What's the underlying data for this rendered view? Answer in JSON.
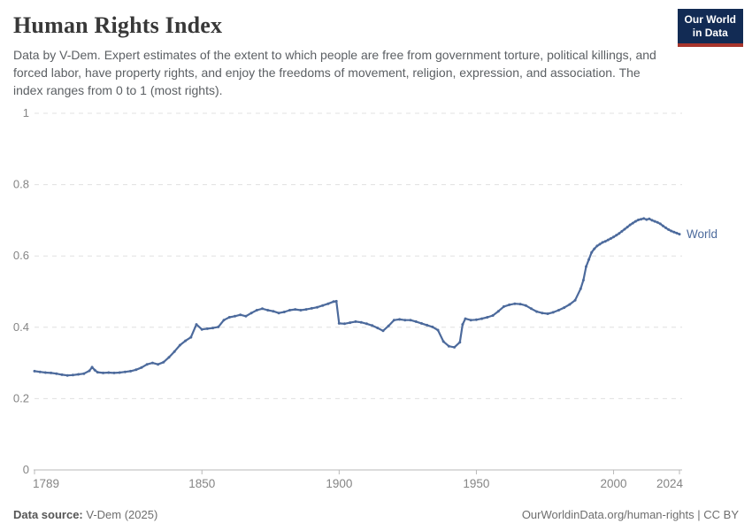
{
  "header": {
    "title": "Human Rights Index",
    "subtitle": "Data by V-Dem. Expert estimates of the extent to which people are free from government torture, political killings, and forced labor, have property rights, and enjoy the freedoms of movement, religion, expression, and association. The index ranges from 0 to 1 (most rights).",
    "logo_line1": "Our World",
    "logo_line2": "in Data"
  },
  "footer": {
    "source_label": "Data source:",
    "source_value": " V-Dem (2025)",
    "url": "OurWorldinData.org/human-rights",
    "separator": " | ",
    "license": "CC BY"
  },
  "colors": {
    "line": "#4c6a9c",
    "grid": "#e0e0e0",
    "axis": "#b8b8b8",
    "tick_label": "#858585",
    "logo_bg": "#122b54",
    "logo_stripe": "#a8352c"
  },
  "chart_data": {
    "type": "line",
    "title": "Human Rights Index",
    "xlabel": "",
    "ylabel": "",
    "xlim": [
      1789,
      2024
    ],
    "ylim": [
      0,
      1
    ],
    "xticks": [
      1789,
      1850,
      1900,
      1950,
      2000,
      2024
    ],
    "yticks": [
      0,
      0.2,
      0.4,
      0.6,
      0.8,
      1
    ],
    "grid": "horizontal-dashed",
    "legend_position": "end-of-line",
    "series": [
      {
        "name": "World",
        "color": "#4c6a9c",
        "points": [
          [
            1789,
            0.277
          ],
          [
            1791,
            0.275
          ],
          [
            1793,
            0.273
          ],
          [
            1795,
            0.272
          ],
          [
            1797,
            0.27
          ],
          [
            1799,
            0.267
          ],
          [
            1801,
            0.265
          ],
          [
            1803,
            0.266
          ],
          [
            1805,
            0.268
          ],
          [
            1807,
            0.27
          ],
          [
            1809,
            0.278
          ],
          [
            1810,
            0.288
          ],
          [
            1811,
            0.28
          ],
          [
            1812,
            0.274
          ],
          [
            1814,
            0.272
          ],
          [
            1816,
            0.273
          ],
          [
            1818,
            0.272
          ],
          [
            1820,
            0.273
          ],
          [
            1822,
            0.275
          ],
          [
            1824,
            0.277
          ],
          [
            1826,
            0.281
          ],
          [
            1828,
            0.287
          ],
          [
            1830,
            0.296
          ],
          [
            1832,
            0.3
          ],
          [
            1834,
            0.296
          ],
          [
            1836,
            0.302
          ],
          [
            1838,
            0.316
          ],
          [
            1840,
            0.332
          ],
          [
            1842,
            0.35
          ],
          [
            1844,
            0.362
          ],
          [
            1846,
            0.372
          ],
          [
            1848,
            0.408
          ],
          [
            1850,
            0.394
          ],
          [
            1852,
            0.396
          ],
          [
            1854,
            0.398
          ],
          [
            1856,
            0.401
          ],
          [
            1858,
            0.42
          ],
          [
            1860,
            0.428
          ],
          [
            1862,
            0.431
          ],
          [
            1864,
            0.435
          ],
          [
            1866,
            0.431
          ],
          [
            1868,
            0.44
          ],
          [
            1870,
            0.448
          ],
          [
            1872,
            0.452
          ],
          [
            1874,
            0.448
          ],
          [
            1876,
            0.445
          ],
          [
            1878,
            0.44
          ],
          [
            1880,
            0.443
          ],
          [
            1882,
            0.448
          ],
          [
            1884,
            0.45
          ],
          [
            1886,
            0.448
          ],
          [
            1888,
            0.45
          ],
          [
            1890,
            0.453
          ],
          [
            1892,
            0.456
          ],
          [
            1894,
            0.461
          ],
          [
            1896,
            0.466
          ],
          [
            1898,
            0.472
          ],
          [
            1899,
            0.473
          ],
          [
            1900,
            0.411
          ],
          [
            1902,
            0.41
          ],
          [
            1904,
            0.413
          ],
          [
            1906,
            0.416
          ],
          [
            1908,
            0.414
          ],
          [
            1910,
            0.41
          ],
          [
            1912,
            0.405
          ],
          [
            1914,
            0.398
          ],
          [
            1916,
            0.39
          ],
          [
            1918,
            0.404
          ],
          [
            1920,
            0.42
          ],
          [
            1922,
            0.422
          ],
          [
            1924,
            0.42
          ],
          [
            1926,
            0.42
          ],
          [
            1928,
            0.416
          ],
          [
            1930,
            0.411
          ],
          [
            1932,
            0.406
          ],
          [
            1934,
            0.401
          ],
          [
            1936,
            0.392
          ],
          [
            1938,
            0.36
          ],
          [
            1940,
            0.347
          ],
          [
            1942,
            0.344
          ],
          [
            1944,
            0.358
          ],
          [
            1945,
            0.408
          ],
          [
            1946,
            0.424
          ],
          [
            1948,
            0.42
          ],
          [
            1950,
            0.421
          ],
          [
            1952,
            0.424
          ],
          [
            1954,
            0.428
          ],
          [
            1956,
            0.433
          ],
          [
            1958,
            0.445
          ],
          [
            1960,
            0.458
          ],
          [
            1962,
            0.463
          ],
          [
            1964,
            0.466
          ],
          [
            1966,
            0.465
          ],
          [
            1968,
            0.461
          ],
          [
            1970,
            0.452
          ],
          [
            1972,
            0.444
          ],
          [
            1974,
            0.44
          ],
          [
            1976,
            0.438
          ],
          [
            1978,
            0.442
          ],
          [
            1980,
            0.448
          ],
          [
            1982,
            0.455
          ],
          [
            1984,
            0.464
          ],
          [
            1986,
            0.476
          ],
          [
            1988,
            0.508
          ],
          [
            1989,
            0.532
          ],
          [
            1990,
            0.57
          ],
          [
            1991,
            0.59
          ],
          [
            1992,
            0.61
          ],
          [
            1993,
            0.62
          ],
          [
            1994,
            0.628
          ],
          [
            1995,
            0.633
          ],
          [
            1996,
            0.638
          ],
          [
            1997,
            0.641
          ],
          [
            1998,
            0.645
          ],
          [
            1999,
            0.649
          ],
          [
            2000,
            0.653
          ],
          [
            2001,
            0.658
          ],
          [
            2002,
            0.663
          ],
          [
            2003,
            0.669
          ],
          [
            2004,
            0.675
          ],
          [
            2005,
            0.681
          ],
          [
            2006,
            0.687
          ],
          [
            2007,
            0.692
          ],
          [
            2008,
            0.697
          ],
          [
            2009,
            0.701
          ],
          [
            2010,
            0.703
          ],
          [
            2011,
            0.705
          ],
          [
            2012,
            0.702
          ],
          [
            2013,
            0.704
          ],
          [
            2014,
            0.7
          ],
          [
            2015,
            0.697
          ],
          [
            2016,
            0.694
          ],
          [
            2017,
            0.69
          ],
          [
            2018,
            0.684
          ],
          [
            2019,
            0.679
          ],
          [
            2020,
            0.674
          ],
          [
            2021,
            0.67
          ],
          [
            2022,
            0.667
          ],
          [
            2023,
            0.664
          ],
          [
            2024,
            0.661
          ]
        ]
      }
    ]
  }
}
